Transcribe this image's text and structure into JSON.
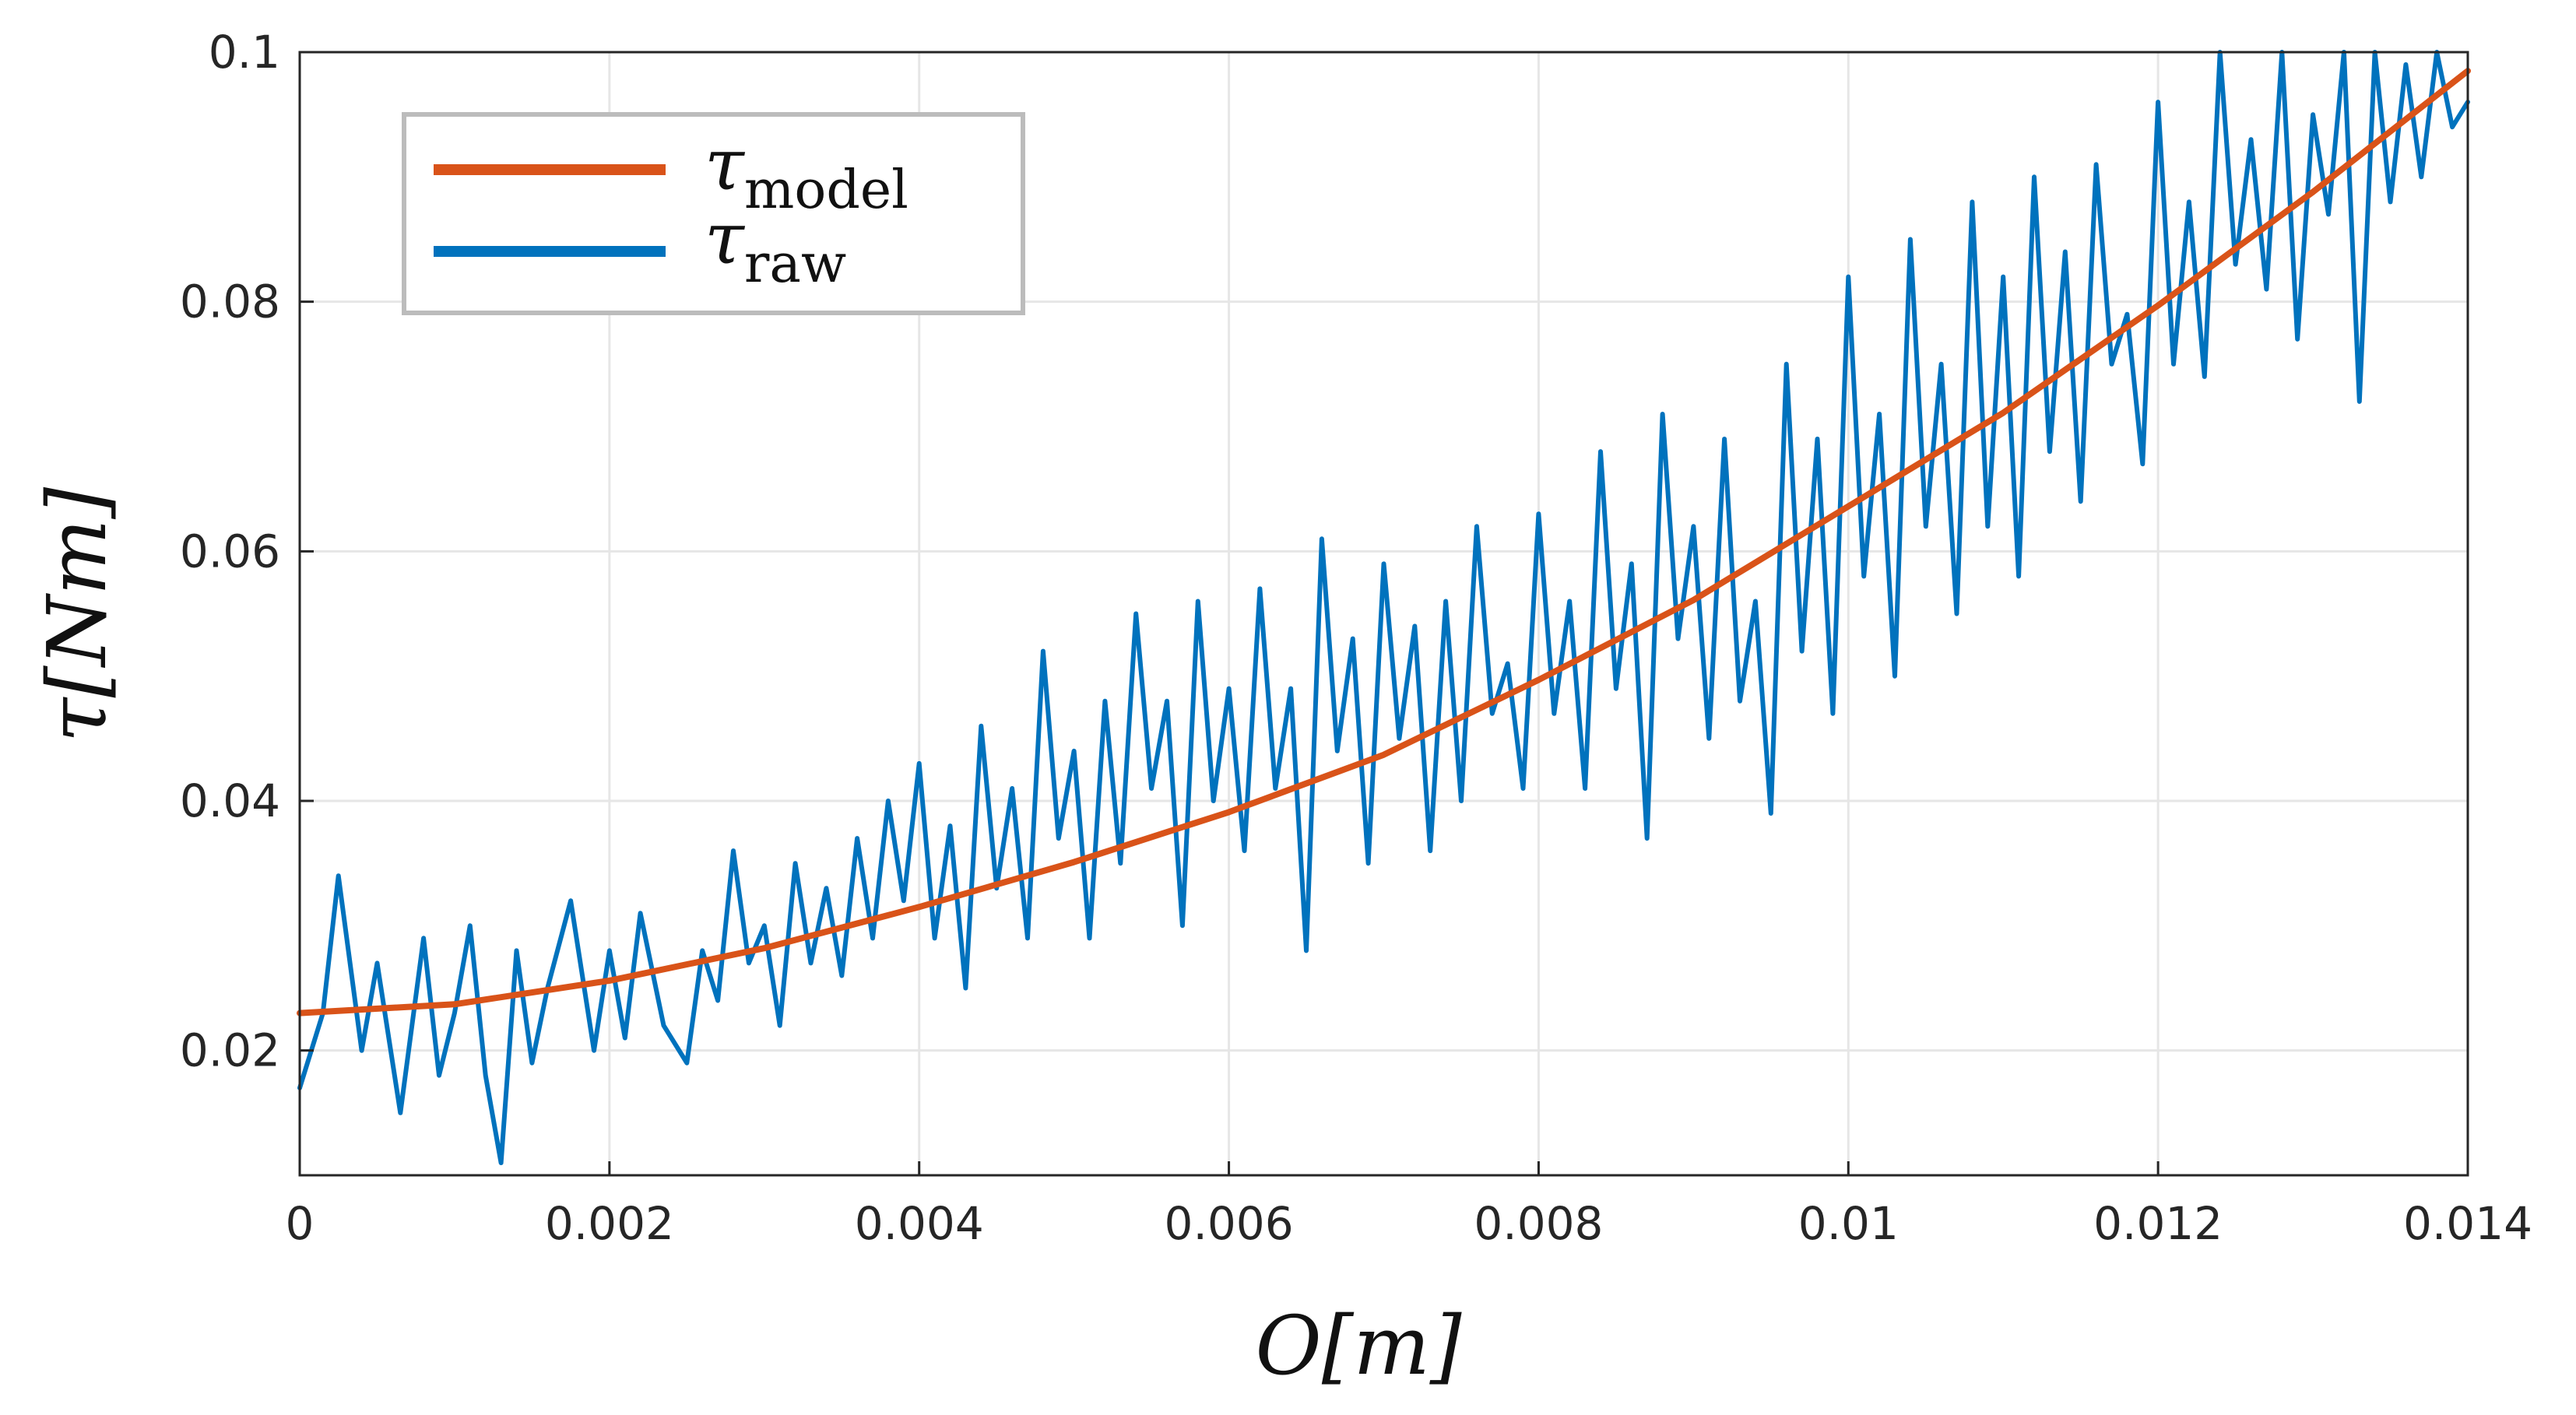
{
  "chart_data": {
    "type": "line",
    "title": "",
    "xlabel": "O[m]",
    "ylabel": "τ[Nm]",
    "xlim": [
      0,
      0.014
    ],
    "ylim": [
      0.01,
      0.1
    ],
    "xticks": [
      "0",
      "0.002",
      "0.004",
      "0.006",
      "0.008",
      "0.01",
      "0.012",
      "0.014"
    ],
    "yticks": [
      "0.02",
      "0.04",
      "0.06",
      "0.08",
      "0.1"
    ],
    "grid": true,
    "legend_position": "top-left",
    "series": [
      {
        "name": "τ_model",
        "legend_symbol": "τ",
        "legend_subscript": "model",
        "color": "#D95319",
        "x": [
          0,
          0.001,
          0.002,
          0.003,
          0.004,
          0.005,
          0.006,
          0.007,
          0.008,
          0.009,
          0.01,
          0.011,
          0.012,
          0.013,
          0.014
        ],
        "y": [
          0.023,
          0.0237,
          0.0256,
          0.0282,
          0.0315,
          0.0351,
          0.0391,
          0.0437,
          0.0497,
          0.0561,
          0.0636,
          0.0711,
          0.0797,
          0.0888,
          0.0985
        ]
      },
      {
        "name": "τ_raw",
        "legend_symbol": "τ",
        "legend_subscript": "raw",
        "color": "#0072BD",
        "x": [
          0,
          0.00015,
          0.00025,
          0.0004,
          0.0005,
          0.00065,
          0.0008,
          0.0009,
          0.001,
          0.0011,
          0.0012,
          0.0013,
          0.0014,
          0.0015,
          0.0016,
          0.00175,
          0.0019,
          0.002,
          0.0021,
          0.0022,
          0.00235,
          0.0025,
          0.0026,
          0.0027,
          0.0028,
          0.0029,
          0.003,
          0.0031,
          0.0032,
          0.0033,
          0.0034,
          0.0035,
          0.0036,
          0.0037,
          0.0038,
          0.0039,
          0.004,
          0.0041,
          0.0042,
          0.0043,
          0.0044,
          0.0045,
          0.0046,
          0.0047,
          0.0048,
          0.0049,
          0.005,
          0.0051,
          0.0052,
          0.0053,
          0.0054,
          0.0055,
          0.0056,
          0.0057,
          0.0058,
          0.0059,
          0.006,
          0.0061,
          0.0062,
          0.0063,
          0.0064,
          0.0065,
          0.0066,
          0.0067,
          0.0068,
          0.0069,
          0.007,
          0.0071,
          0.0072,
          0.0073,
          0.0074,
          0.0075,
          0.0076,
          0.0077,
          0.0078,
          0.0079,
          0.008,
          0.0081,
          0.0082,
          0.0083,
          0.0084,
          0.0085,
          0.0086,
          0.0087,
          0.0088,
          0.0089,
          0.009,
          0.0091,
          0.0092,
          0.0093,
          0.0094,
          0.0095,
          0.0096,
          0.0097,
          0.0098,
          0.0099,
          0.01,
          0.0101,
          0.0102,
          0.0103,
          0.0104,
          0.0105,
          0.0106,
          0.0107,
          0.0108,
          0.0109,
          0.011,
          0.0111,
          0.0112,
          0.0113,
          0.0114,
          0.0115,
          0.0116,
          0.0117,
          0.0118,
          0.0119,
          0.012,
          0.0121,
          0.0122,
          0.0123,
          0.0124,
          0.0125,
          0.0126,
          0.0127,
          0.0128,
          0.0129,
          0.013,
          0.0131,
          0.0132,
          0.0133,
          0.0134,
          0.0135,
          0.0136,
          0.0137,
          0.0138,
          0.0139,
          0.014
        ],
        "y": [
          0.017,
          0.023,
          0.034,
          0.02,
          0.027,
          0.015,
          0.029,
          0.018,
          0.023,
          0.03,
          0.018,
          0.011,
          0.028,
          0.019,
          0.025,
          0.032,
          0.02,
          0.028,
          0.021,
          0.031,
          0.022,
          0.019,
          0.028,
          0.024,
          0.036,
          0.027,
          0.03,
          0.022,
          0.035,
          0.027,
          0.033,
          0.026,
          0.037,
          0.029,
          0.04,
          0.032,
          0.043,
          0.029,
          0.038,
          0.025,
          0.046,
          0.033,
          0.041,
          0.029,
          0.052,
          0.037,
          0.044,
          0.029,
          0.048,
          0.035,
          0.055,
          0.041,
          0.048,
          0.03,
          0.056,
          0.04,
          0.049,
          0.036,
          0.057,
          0.041,
          0.049,
          0.028,
          0.061,
          0.044,
          0.053,
          0.035,
          0.059,
          0.045,
          0.054,
          0.036,
          0.056,
          0.04,
          0.062,
          0.047,
          0.051,
          0.041,
          0.063,
          0.047,
          0.056,
          0.041,
          0.068,
          0.049,
          0.059,
          0.037,
          0.071,
          0.053,
          0.062,
          0.045,
          0.069,
          0.048,
          0.056,
          0.039,
          0.075,
          0.052,
          0.069,
          0.047,
          0.082,
          0.058,
          0.071,
          0.05,
          0.085,
          0.062,
          0.075,
          0.055,
          0.088,
          0.062,
          0.082,
          0.058,
          0.09,
          0.068,
          0.084,
          0.064,
          0.091,
          0.075,
          0.079,
          0.067,
          0.096,
          0.075,
          0.088,
          0.074,
          0.1,
          0.083,
          0.093,
          0.081,
          0.1,
          0.077,
          0.095,
          0.087,
          0.1,
          0.072,
          0.1,
          0.088,
          0.099,
          0.09,
          0.1,
          0.094,
          0.096
        ]
      }
    ]
  }
}
